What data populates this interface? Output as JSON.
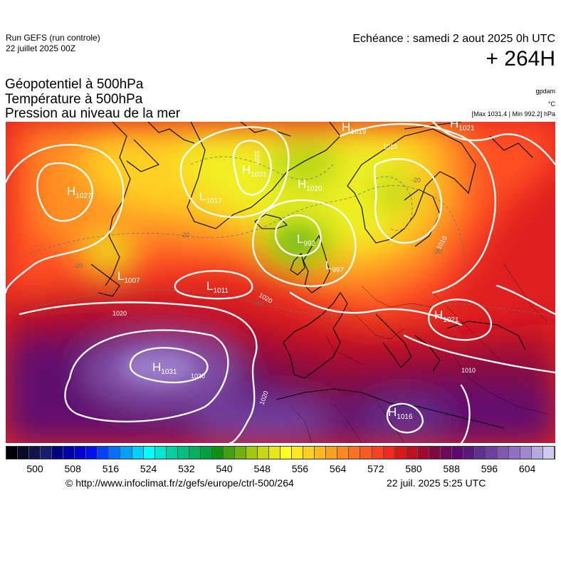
{
  "header": {
    "run_title": "Run GEFS (run controle)",
    "run_date": "22 juillet 2025 00Z",
    "echeance": "Echéance : samedi 2 aout 2025 0h UTC",
    "hour": "+ 264H"
  },
  "parameters": [
    "Géopotentiel à 500hPa",
    "Température à 500hPa",
    "Pression au niveau de la mer"
  ],
  "units": {
    "geopotential": "gpdam",
    "temperature": "°C",
    "pressure": "[Max 1031.4 | Min 992.2] hPa"
  },
  "pressure_centers": [
    {
      "type": "H",
      "value": "1019"
    },
    {
      "type": "H",
      "value": "1021"
    },
    {
      "type": "H",
      "value": "1031"
    },
    {
      "type": "H",
      "value": "1020"
    },
    {
      "type": "H",
      "value": "1027"
    },
    {
      "type": "L",
      "value": "1017"
    },
    {
      "type": "L",
      "value": "992"
    },
    {
      "type": "L",
      "value": "997"
    },
    {
      "type": "L",
      "value": "1011"
    },
    {
      "type": "L",
      "value": "1007"
    },
    {
      "type": "H",
      "value": "1021"
    },
    {
      "type": "H",
      "value": "1031"
    },
    {
      "type": "H",
      "value": "1016"
    }
  ],
  "isobar_labels": [
    "1020",
    "1010",
    "1020",
    "1030",
    "1020",
    "1010",
    "1010",
    "1020"
  ],
  "temperature_labels": [
    "-20",
    "-20",
    "-20",
    "-20",
    "-10"
  ],
  "colorscale": {
    "colors": [
      "#000008",
      "#0a0a2a",
      "#12124a",
      "#1a1a6e",
      "#000080",
      "#0000a8",
      "#0000d0",
      "#0010f0",
      "#0040ff",
      "#0070ff",
      "#00a0ff",
      "#00d0ff",
      "#00ffff",
      "#00e8d0",
      "#00d0a0",
      "#00c080",
      "#00b060",
      "#00a040",
      "#109010",
      "#40a010",
      "#70b010",
      "#a0c810",
      "#c8d810",
      "#e8e818",
      "#ffff20",
      "#ffe820",
      "#ffd020",
      "#ffb820",
      "#ffa020",
      "#ff8820",
      "#ff7020",
      "#ff5820",
      "#ff4020",
      "#f02820",
      "#d81818",
      "#c01020",
      "#a00830",
      "#800840",
      "#700858",
      "#600870",
      "#581880",
      "#603090",
      "#7040a0",
      "#8058b0",
      "#9070c0",
      "#a088d0",
      "#b8a8e0",
      "#d0c8f0"
    ],
    "tick_labels": [
      "500",
      "508",
      "516",
      "524",
      "532",
      "540",
      "548",
      "556",
      "564",
      "572",
      "580",
      "588",
      "596",
      "604"
    ]
  },
  "footer": {
    "url": "© http://www.infoclimat.fr/z/gefs/europe/ctrl-500/264",
    "timestamp": "22 juil. 2025  5:25 UTC"
  }
}
